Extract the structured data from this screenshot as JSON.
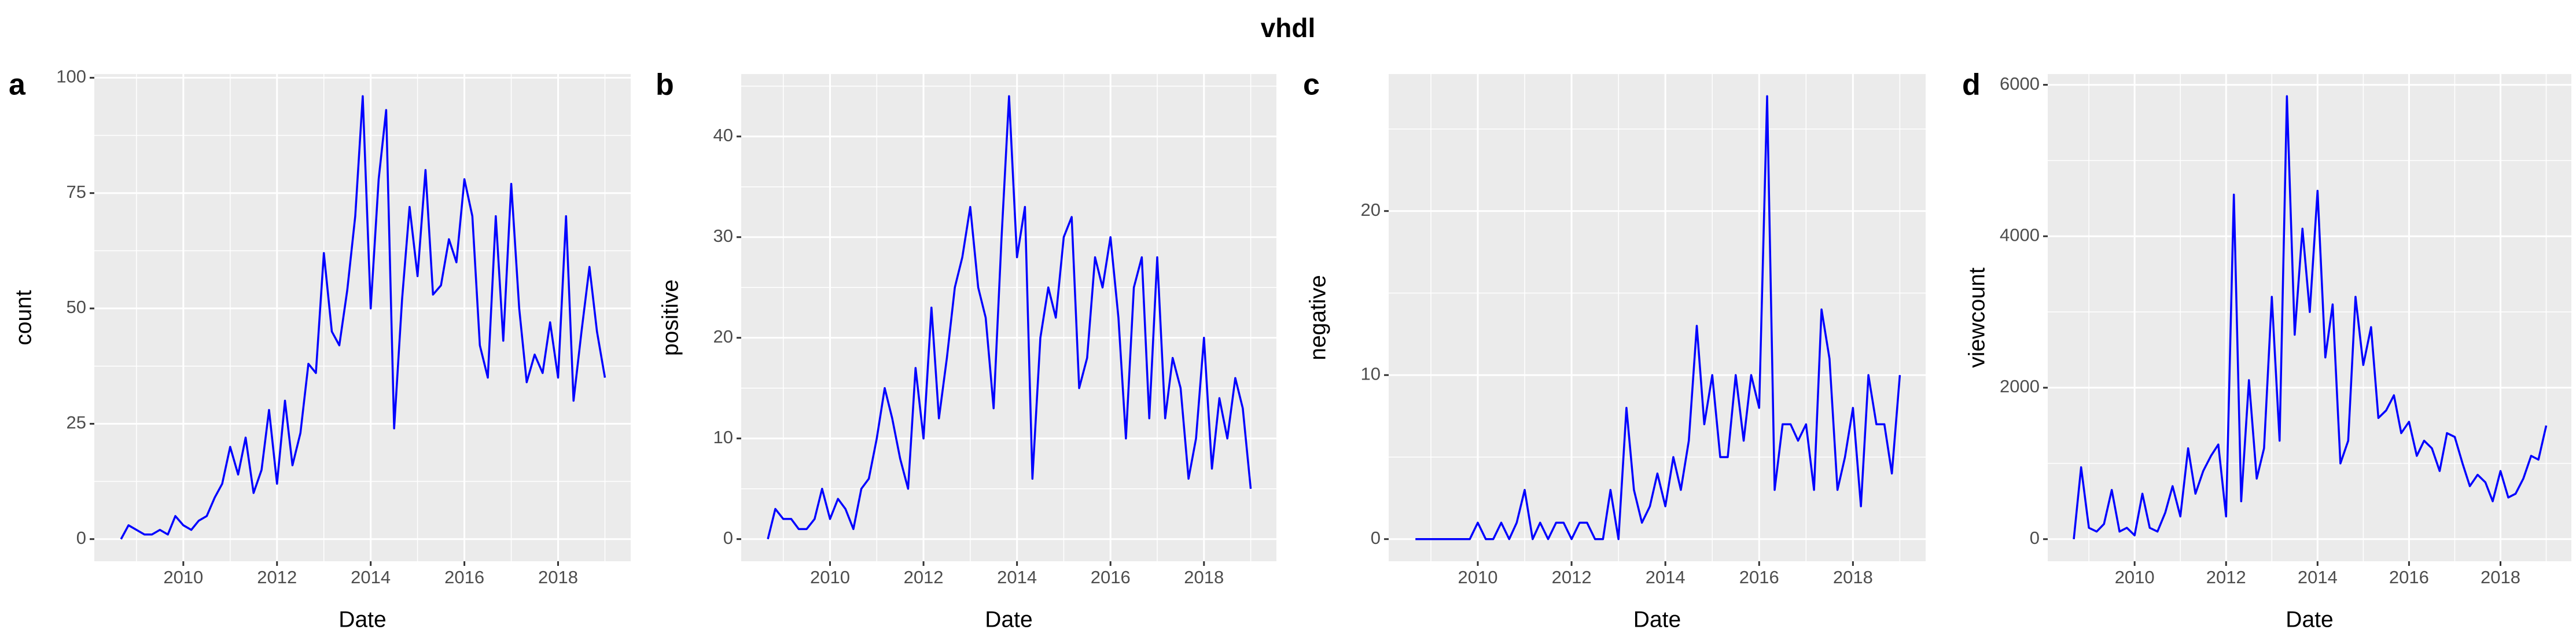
{
  "title": "vhdl",
  "chart_data": [
    {
      "type": "line",
      "label": "a",
      "xlabel": "Date",
      "ylabel": "count",
      "color": "#0000FF",
      "grid": true,
      "x": [
        2008.67,
        2008.83,
        2009,
        2009.17,
        2009.33,
        2009.5,
        2009.67,
        2009.83,
        2010,
        2010.17,
        2010.33,
        2010.5,
        2010.67,
        2010.83,
        2011,
        2011.17,
        2011.33,
        2011.5,
        2011.67,
        2011.83,
        2012,
        2012.17,
        2012.33,
        2012.5,
        2012.67,
        2012.83,
        2013,
        2013.17,
        2013.33,
        2013.5,
        2013.67,
        2013.83,
        2014,
        2014.17,
        2014.33,
        2014.5,
        2014.67,
        2014.83,
        2015,
        2015.17,
        2015.33,
        2015.5,
        2015.67,
        2015.83,
        2016,
        2016.17,
        2016.33,
        2016.5,
        2016.67,
        2016.83,
        2017,
        2017.17,
        2017.33,
        2017.5,
        2017.67,
        2017.83,
        2018,
        2018.17,
        2018.33,
        2018.5,
        2018.67,
        2018.83,
        2019
      ],
      "values": [
        0,
        3,
        2,
        1,
        1,
        2,
        1,
        5,
        3,
        2,
        4,
        5,
        9,
        12,
        20,
        14,
        22,
        10,
        15,
        28,
        12,
        30,
        16,
        23,
        38,
        36,
        62,
        45,
        42,
        54,
        70,
        96,
        50,
        78,
        93,
        24,
        52,
        72,
        57,
        80,
        53,
        55,
        65,
        60,
        78,
        70,
        42,
        35,
        70,
        43,
        77,
        50,
        34,
        40,
        36,
        47,
        35,
        70,
        30,
        45,
        59,
        45,
        35
      ],
      "xlim": [
        2008.1,
        2019.55
      ],
      "xticks": [
        2010,
        2012,
        2014,
        2016,
        2018
      ],
      "ylim": [
        -4.8,
        100.8
      ],
      "yticks": [
        0,
        25,
        50,
        75,
        100
      ]
    },
    {
      "type": "line",
      "label": "b",
      "xlabel": "Date",
      "ylabel": "positive",
      "color": "#0000FF",
      "grid": true,
      "x": [
        2008.67,
        2008.83,
        2009,
        2009.17,
        2009.33,
        2009.5,
        2009.67,
        2009.83,
        2010,
        2010.17,
        2010.33,
        2010.5,
        2010.67,
        2010.83,
        2011,
        2011.17,
        2011.33,
        2011.5,
        2011.67,
        2011.83,
        2012,
        2012.17,
        2012.33,
        2012.5,
        2012.67,
        2012.83,
        2013,
        2013.17,
        2013.33,
        2013.5,
        2013.67,
        2013.83,
        2014,
        2014.17,
        2014.33,
        2014.5,
        2014.67,
        2014.83,
        2015,
        2015.17,
        2015.33,
        2015.5,
        2015.67,
        2015.83,
        2016,
        2016.17,
        2016.33,
        2016.5,
        2016.67,
        2016.83,
        2017,
        2017.17,
        2017.33,
        2017.5,
        2017.67,
        2017.83,
        2018,
        2018.17,
        2018.33,
        2018.5,
        2018.67,
        2018.83,
        2019
      ],
      "values": [
        0,
        3,
        2,
        2,
        1,
        1,
        2,
        5,
        2,
        4,
        3,
        1,
        5,
        6,
        10,
        15,
        12,
        8,
        5,
        17,
        10,
        23,
        12,
        18,
        25,
        28,
        33,
        25,
        22,
        13,
        30,
        44,
        28,
        33,
        6,
        20,
        25,
        22,
        30,
        32,
        15,
        18,
        28,
        25,
        30,
        22,
        10,
        25,
        28,
        12,
        28,
        12,
        18,
        15,
        6,
        10,
        20,
        7,
        14,
        10,
        16,
        13,
        5
      ],
      "xlim": [
        2008.1,
        2019.55
      ],
      "xticks": [
        2010,
        2012,
        2014,
        2016,
        2018
      ],
      "ylim": [
        -2.2,
        46.2
      ],
      "yticks": [
        0,
        10,
        20,
        30,
        40
      ]
    },
    {
      "type": "line",
      "label": "c",
      "xlabel": "Date",
      "ylabel": "negative",
      "color": "#0000FF",
      "grid": true,
      "x": [
        2008.67,
        2008.83,
        2009,
        2009.17,
        2009.33,
        2009.5,
        2009.67,
        2009.83,
        2010,
        2010.17,
        2010.33,
        2010.5,
        2010.67,
        2010.83,
        2011,
        2011.17,
        2011.33,
        2011.5,
        2011.67,
        2011.83,
        2012,
        2012.17,
        2012.33,
        2012.5,
        2012.67,
        2012.83,
        2013,
        2013.17,
        2013.33,
        2013.5,
        2013.67,
        2013.83,
        2014,
        2014.17,
        2014.33,
        2014.5,
        2014.67,
        2014.83,
        2015,
        2015.17,
        2015.33,
        2015.5,
        2015.67,
        2015.83,
        2016,
        2016.17,
        2016.33,
        2016.5,
        2016.67,
        2016.83,
        2017,
        2017.17,
        2017.33,
        2017.5,
        2017.67,
        2017.83,
        2018,
        2018.17,
        2018.33,
        2018.5,
        2018.67,
        2018.83,
        2019
      ],
      "values": [
        0,
        0,
        0,
        0,
        0,
        0,
        0,
        0,
        1,
        0,
        0,
        1,
        0,
        1,
        3,
        0,
        1,
        0,
        1,
        1,
        0,
        1,
        1,
        0,
        0,
        3,
        0,
        8,
        3,
        1,
        2,
        4,
        2,
        5,
        3,
        6,
        13,
        7,
        10,
        5,
        5,
        10,
        6,
        10,
        8,
        27,
        3,
        7,
        7,
        6,
        7,
        3,
        14,
        11,
        3,
        5,
        8,
        2,
        10,
        7,
        7,
        4,
        10
      ],
      "xlim": [
        2008.1,
        2019.55
      ],
      "xticks": [
        2010,
        2012,
        2014,
        2016,
        2018
      ],
      "ylim": [
        -1.35,
        28.35
      ],
      "yticks": [
        0,
        10,
        20
      ]
    },
    {
      "type": "line",
      "label": "d",
      "xlabel": "Date",
      "ylabel": "viewcount",
      "color": "#0000FF",
      "grid": true,
      "x": [
        2008.67,
        2008.83,
        2009,
        2009.17,
        2009.33,
        2009.5,
        2009.67,
        2009.83,
        2010,
        2010.17,
        2010.33,
        2010.5,
        2010.67,
        2010.83,
        2011,
        2011.17,
        2011.33,
        2011.5,
        2011.67,
        2011.83,
        2012,
        2012.17,
        2012.33,
        2012.5,
        2012.67,
        2012.83,
        2013,
        2013.17,
        2013.33,
        2013.5,
        2013.67,
        2013.83,
        2014,
        2014.17,
        2014.33,
        2014.5,
        2014.67,
        2014.83,
        2015,
        2015.17,
        2015.33,
        2015.5,
        2015.67,
        2015.83,
        2016,
        2016.17,
        2016.33,
        2016.5,
        2016.67,
        2016.83,
        2017,
        2017.17,
        2017.33,
        2017.5,
        2017.67,
        2017.83,
        2018,
        2018.17,
        2018.33,
        2018.5,
        2018.67,
        2018.83,
        2019
      ],
      "values": [
        0,
        950,
        150,
        100,
        200,
        650,
        100,
        150,
        50,
        600,
        150,
        100,
        350,
        700,
        300,
        1200,
        600,
        900,
        1100,
        1250,
        300,
        4550,
        500,
        2100,
        800,
        1200,
        3200,
        1300,
        5850,
        2700,
        4100,
        3000,
        4600,
        2400,
        3100,
        1000,
        1300,
        3200,
        2300,
        2800,
        1600,
        1700,
        1900,
        1400,
        1550,
        1100,
        1300,
        1200,
        900,
        1400,
        1350,
        1000,
        700,
        850,
        750,
        500,
        900,
        550,
        600,
        800,
        1100,
        1050,
        1500
      ],
      "xlim": [
        2008.1,
        2019.55
      ],
      "xticks": [
        2010,
        2012,
        2014,
        2016,
        2018
      ],
      "ylim": [
        -292,
        6142
      ],
      "yticks": [
        0,
        2000,
        4000,
        6000
      ]
    }
  ]
}
